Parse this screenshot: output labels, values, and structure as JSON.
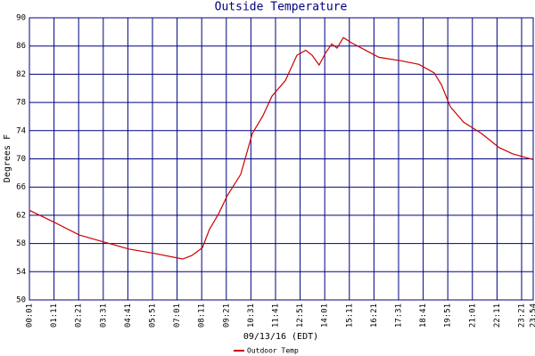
{
  "chart_data": {
    "type": "line",
    "title": "Outside Temperature",
    "x_label": "09/13/16 (EDT)",
    "y_label": "Degrees F",
    "xlim": [
      1,
      1434
    ],
    "xticks": [
      {
        "value": 1,
        "label": "00:01"
      },
      {
        "value": 71,
        "label": "01:11"
      },
      {
        "value": 141,
        "label": "02:21"
      },
      {
        "value": 211,
        "label": "03:31"
      },
      {
        "value": 281,
        "label": "04:41"
      },
      {
        "value": 351,
        "label": "05:51"
      },
      {
        "value": 421,
        "label": "07:01"
      },
      {
        "value": 491,
        "label": "08:11"
      },
      {
        "value": 561,
        "label": "09:21"
      },
      {
        "value": 631,
        "label": "10:31"
      },
      {
        "value": 701,
        "label": "11:41"
      },
      {
        "value": 771,
        "label": "12:51"
      },
      {
        "value": 841,
        "label": "14:01"
      },
      {
        "value": 911,
        "label": "15:11"
      },
      {
        "value": 981,
        "label": "16:21"
      },
      {
        "value": 1051,
        "label": "17:31"
      },
      {
        "value": 1121,
        "label": "18:41"
      },
      {
        "value": 1191,
        "label": "19:51"
      },
      {
        "value": 1261,
        "label": "21:01"
      },
      {
        "value": 1331,
        "label": "22:11"
      },
      {
        "value": 1401,
        "label": "23:21"
      },
      {
        "value": 1434,
        "label": "23:54"
      }
    ],
    "ylim": [
      50,
      90
    ],
    "yticks": [
      50,
      54,
      58,
      62,
      66,
      70,
      74,
      78,
      82,
      86,
      90
    ],
    "grid": true,
    "grid_color": "#000080",
    "legend": "bottom",
    "series": [
      {
        "name": "Outdoor Temp",
        "color": "#cc0000",
        "x": [
          1,
          72,
          143,
          214,
          285,
          356,
          427,
          437,
          463,
          493,
          513,
          539,
          564,
          602,
          635,
          665,
          691,
          729,
          762,
          787,
          805,
          825,
          843,
          861,
          876,
          894,
          919,
          957,
          995,
          1058,
          1109,
          1152,
          1173,
          1198,
          1236,
          1287,
          1337,
          1376,
          1434
        ],
        "values": [
          62.7,
          61,
          59.2,
          58.2,
          57.2,
          56.6,
          55.9,
          55.8,
          56.3,
          57.4,
          60,
          62.2,
          64.8,
          67.8,
          73.6,
          76.1,
          78.9,
          81.1,
          84.7,
          85.4,
          84.7,
          83.3,
          85,
          86.3,
          85.7,
          87.2,
          86.4,
          85.4,
          84.4,
          83.9,
          83.4,
          82.2,
          80.5,
          77.4,
          75.2,
          73.6,
          71.6,
          70.7,
          69.9
        ]
      }
    ]
  }
}
